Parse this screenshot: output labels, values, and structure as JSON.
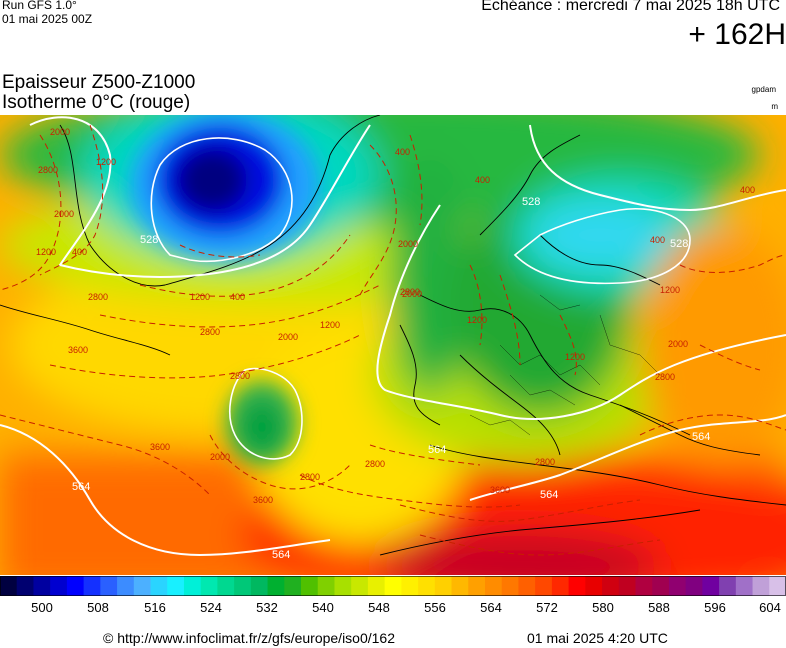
{
  "header": {
    "run_title": "Run GFS 1.0°",
    "run_date": "01 mai 2025 00Z",
    "forecast_label": "Echéance : mercredi 7 mai 2025 18h UTC",
    "forecast_hour": "+ 162H"
  },
  "titles": {
    "line1": "Epaisseur Z500-Z1000",
    "line2": "Isotherme 0°C (rouge)"
  },
  "units": {
    "thickness": "gpdam",
    "isotherm": "m"
  },
  "map": {
    "white_contour_labels": [
      "528",
      "528",
      "528",
      "564",
      "564",
      "564",
      "564",
      "564"
    ],
    "red_contour_labels": [
      "2000",
      "2800",
      "1200",
      "400",
      "1200",
      "2000",
      "2800",
      "400",
      "1200",
      "2000",
      "1200",
      "2800",
      "3600",
      "2000",
      "2800",
      "3600",
      "2800",
      "3600",
      "2800",
      "400",
      "2000",
      "2800",
      "1200",
      "2000",
      "1200",
      "400",
      "400",
      "1200",
      "2000",
      "2800",
      "2800",
      "3600",
      "400"
    ]
  },
  "colorbar": {
    "ticks": [
      "500",
      "508",
      "516",
      "524",
      "532",
      "540",
      "548",
      "556",
      "564",
      "572",
      "580",
      "588",
      "596",
      "604"
    ],
    "colors": [
      "#000040",
      "#000070",
      "#0000a0",
      "#0000d0",
      "#0000ff",
      "#1430ff",
      "#2a60ff",
      "#3c8cff",
      "#4cb0ff",
      "#2ad4ff",
      "#18f0ff",
      "#00f0d8",
      "#00e8b0",
      "#00d890",
      "#00c878",
      "#00b860",
      "#00b030",
      "#20b020",
      "#50c000",
      "#80d000",
      "#a8e000",
      "#c8e800",
      "#e8f000",
      "#ffff00",
      "#fff000",
      "#ffe000",
      "#ffd000",
      "#ffb800",
      "#ffa000",
      "#ff8c00",
      "#ff7800",
      "#ff6000",
      "#ff4800",
      "#ff2800",
      "#ff0000",
      "#e80000",
      "#d00010",
      "#c00020",
      "#b00040",
      "#a00050",
      "#900070",
      "#800080",
      "#7000a0",
      "#8040b0",
      "#a070c8",
      "#c0a0d8",
      "#d8c0e8"
    ]
  },
  "footer": {
    "url": "© http://www.infoclimat.fr/z/gfs/europe/iso0/162",
    "timestamp": "01 mai 2025  4:20 UTC"
  }
}
